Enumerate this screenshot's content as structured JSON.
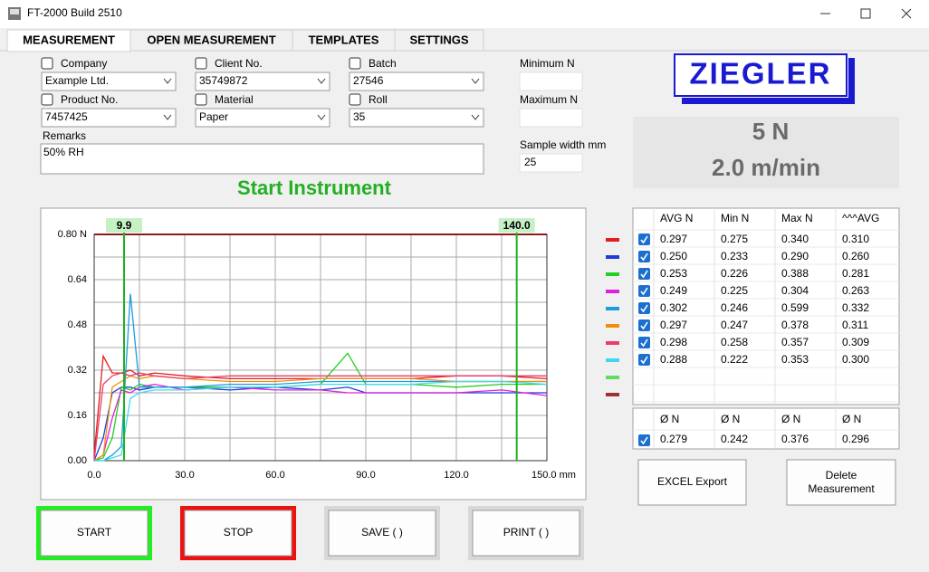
{
  "window": {
    "title": "FT-2000 Build 2510"
  },
  "tabs": [
    "MEASUREMENT",
    "OPEN MEASUREMENT",
    "TEMPLATES",
    "SETTINGS"
  ],
  "form": {
    "fields": [
      {
        "label": "Company",
        "value": "Example Ltd."
      },
      {
        "label": "Client No.",
        "value": "35749872"
      },
      {
        "label": "Batch",
        "value": "27546"
      },
      {
        "label": "Product No.",
        "value": "7457425"
      },
      {
        "label": "Material",
        "value": "Paper"
      },
      {
        "label": "Roll",
        "value": "35"
      }
    ],
    "remarks": {
      "label": "Remarks",
      "value": "50% RH"
    },
    "minimum_label": "Minimum N",
    "maximum_label": "Maximum N",
    "sample_width": {
      "label": "Sample width mm",
      "value": "25"
    }
  },
  "logo": "ZIEGLER",
  "status": {
    "force": "5 N",
    "speed": "2.0 m/min"
  },
  "message": "Start Instrument",
  "chart_data": {
    "type": "line",
    "x": [
      0,
      3,
      6,
      9,
      12,
      15,
      20,
      30,
      45,
      60,
      75,
      84,
      90,
      105,
      120,
      135,
      150
    ],
    "xlim": [
      0,
      150
    ],
    "ylim": [
      0,
      0.8
    ],
    "xticks": [
      {
        "value": 0,
        "label": "0.0"
      },
      {
        "value": 30,
        "label": "30.0"
      },
      {
        "value": 60,
        "label": "60.0"
      },
      {
        "value": 90,
        "label": "90.0"
      },
      {
        "value": 120,
        "label": "120.0"
      },
      {
        "value": 150,
        "label": "150.0 mm"
      }
    ],
    "yticks": [
      {
        "value": 0,
        "label": "0.00"
      },
      0.16,
      0.32,
      0.48,
      0.64,
      {
        "value": 0.8,
        "label": "0.80 N"
      }
    ],
    "xgrid": [
      15,
      45,
      75,
      105,
      135
    ],
    "ygrid": [
      0.08,
      0.24,
      0.4,
      0.56,
      0.72
    ],
    "grid": true,
    "markers": [
      9.9,
      {
        "value": 140,
        "label": "140.0"
      }
    ],
    "series": [
      {
        "color": "#e02020",
        "values": [
          0.02,
          0.37,
          0.31,
          0.31,
          0.32,
          0.3,
          0.31,
          0.3,
          0.29,
          0.29,
          0.29,
          0.29,
          0.29,
          0.29,
          0.3,
          0.3,
          0.29
        ]
      },
      {
        "color": "#1e3cd8",
        "values": [
          0.0,
          0.08,
          0.24,
          0.26,
          0.26,
          0.25,
          0.26,
          0.26,
          0.25,
          0.26,
          0.25,
          0.26,
          0.24,
          0.24,
          0.24,
          0.24,
          0.24
        ]
      },
      {
        "color": "#22d022",
        "values": [
          0.0,
          0.01,
          0.08,
          0.26,
          0.25,
          0.27,
          0.26,
          0.26,
          0.26,
          0.26,
          0.27,
          0.38,
          0.27,
          0.27,
          0.26,
          0.27,
          0.27
        ]
      },
      {
        "color": "#e020e0",
        "values": [
          0.0,
          0.02,
          0.15,
          0.25,
          0.24,
          0.26,
          0.27,
          0.25,
          0.26,
          0.25,
          0.25,
          0.24,
          0.24,
          0.24,
          0.24,
          0.25,
          0.23
        ]
      },
      {
        "color": "#1e9be0",
        "values": [
          0.0,
          0.0,
          0.02,
          0.05,
          0.59,
          0.26,
          0.26,
          0.26,
          0.27,
          0.27,
          0.28,
          0.28,
          0.28,
          0.28,
          0.28,
          0.28,
          0.28
        ]
      },
      {
        "color": "#f0900a",
        "values": [
          0.0,
          0.02,
          0.26,
          0.28,
          0.3,
          0.29,
          0.3,
          0.29,
          0.28,
          0.28,
          0.29,
          0.29,
          0.29,
          0.29,
          0.28,
          0.28,
          0.28
        ]
      },
      {
        "color": "#e83e6e",
        "values": [
          0.0,
          0.27,
          0.3,
          0.31,
          0.3,
          0.31,
          0.3,
          0.29,
          0.3,
          0.3,
          0.3,
          0.3,
          0.3,
          0.3,
          0.3,
          0.3,
          0.3
        ]
      },
      {
        "color": "#40d8f0",
        "values": [
          0.0,
          0.0,
          0.01,
          0.02,
          0.22,
          0.24,
          0.25,
          0.25,
          0.26,
          0.26,
          0.27,
          0.27,
          0.27,
          0.27,
          0.28,
          0.28,
          0.27
        ]
      }
    ]
  },
  "table": {
    "row_colors": [
      "#e02020",
      "#1e3cd8",
      "#22d022",
      "#e020e0",
      "#1e9be0",
      "#f0900a",
      "#e83e6e",
      "#40d8f0",
      "#5de05d",
      "#a03030"
    ],
    "columns": [
      "AVG N",
      "Min N",
      "Max N",
      "^^^AVG"
    ],
    "rows": [
      [
        "0.297",
        "0.275",
        "0.340",
        "0.310"
      ],
      [
        "0.250",
        "0.233",
        "0.290",
        "0.260"
      ],
      [
        "0.253",
        "0.226",
        "0.388",
        "0.281"
      ],
      [
        "0.249",
        "0.225",
        "0.304",
        "0.263"
      ],
      [
        "0.302",
        "0.246",
        "0.599",
        "0.332"
      ],
      [
        "0.297",
        "0.247",
        "0.378",
        "0.311"
      ],
      [
        "0.298",
        "0.258",
        "0.357",
        "0.309"
      ],
      [
        "0.288",
        "0.222",
        "0.353",
        "0.300"
      ]
    ],
    "summary_columns": [
      "Ø N",
      "Ø N",
      "Ø N",
      "Ø N"
    ],
    "summary": [
      "0.279",
      "0.242",
      "0.376",
      "0.296"
    ]
  },
  "buttons": {
    "excel": "EXCEL Export",
    "delete": "Delete Measurement",
    "start": "START",
    "stop": "STOP",
    "save": "SAVE ( )",
    "print": "PRINT ( )"
  }
}
